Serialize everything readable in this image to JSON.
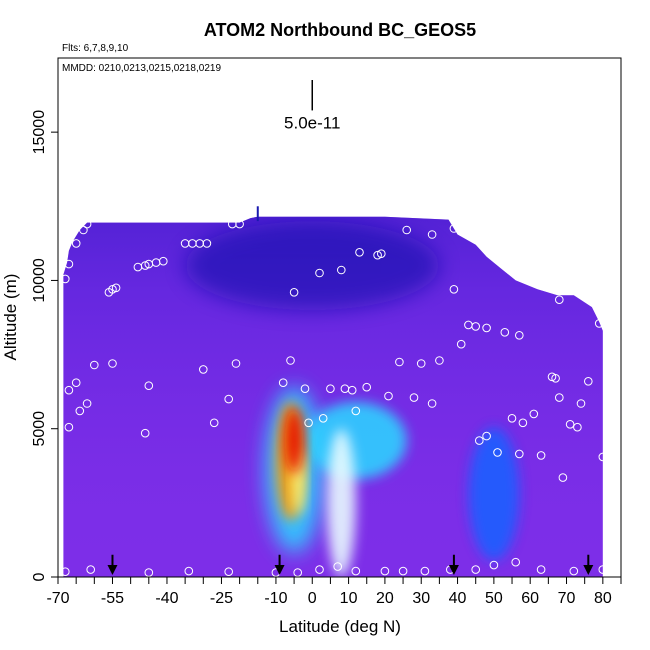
{
  "chart_data": {
    "type": "heatmap",
    "title": "ATOM2 Northbound BC_GEOS5",
    "subtitle_flights": "Flts: 6,7,8,9,10",
    "subtitle_dates": "MMDD: 0210,0213,0215,0218,0219",
    "xlabel": "Latitude (deg N)",
    "ylabel": "Altitude (m)",
    "xlim": [
      -70,
      85
    ],
    "ylim": [
      0,
      17500
    ],
    "xticks": [
      -70,
      -65,
      -60,
      -55,
      -50,
      -45,
      -40,
      -35,
      -30,
      -25,
      -20,
      -15,
      -10,
      -5,
      0,
      5,
      10,
      15,
      20,
      25,
      30,
      35,
      40,
      45,
      50,
      55,
      60,
      65,
      70,
      75,
      80,
      85
    ],
    "xtick_labels": [
      {
        "value": -70,
        "label": "-70"
      },
      {
        "value": -55,
        "label": "-55"
      },
      {
        "value": -40,
        "label": "-40"
      },
      {
        "value": -25,
        "label": "-25"
      },
      {
        "value": -10,
        "label": "-10"
      },
      {
        "value": 0,
        "label": "0"
      },
      {
        "value": 10,
        "label": "10"
      },
      {
        "value": 20,
        "label": "20"
      },
      {
        "value": 30,
        "label": "30"
      },
      {
        "value": 40,
        "label": "40"
      },
      {
        "value": 50,
        "label": "50"
      },
      {
        "value": 60,
        "label": "60"
      },
      {
        "value": 70,
        "label": "70"
      },
      {
        "value": 80,
        "label": "80"
      }
    ],
    "yticks": [
      {
        "value": 0,
        "label": "0"
      },
      {
        "value": 5000,
        "label": "5000"
      },
      {
        "value": 10000,
        "label": "10000"
      },
      {
        "value": 15000,
        "label": "15000"
      }
    ],
    "scale_bar": {
      "label": "5.0e-11",
      "lat": 0,
      "alt_bottom": 15800,
      "alt_top": 17500
    },
    "colors": {
      "background": "#7d2ee8",
      "low": "#5a1fd6",
      "navy": "#0a0aa8",
      "blue": "#1f5fff",
      "cyan": "#2fd0ff",
      "pale": "#e8fbff",
      "yellow": "#ffff80",
      "orange": "#ff9a00",
      "red": "#e81000",
      "marker": "#ffffff"
    },
    "domain_outline": [
      [
        -68.5,
        0
      ],
      [
        -68.5,
        10200
      ],
      [
        -67.5,
        10600
      ],
      [
        -67,
        11000
      ],
      [
        -66,
        11300
      ],
      [
        -64,
        11700
      ],
      [
        -62,
        11950
      ],
      [
        -20,
        11950
      ],
      [
        -17,
        12100
      ],
      [
        -15,
        12150
      ],
      [
        -10,
        12150
      ],
      [
        20,
        12150
      ],
      [
        37.5,
        12050
      ],
      [
        40,
        11550
      ],
      [
        45,
        11200
      ],
      [
        48,
        10800
      ],
      [
        52,
        10400
      ],
      [
        56,
        10000
      ],
      [
        62,
        9700
      ],
      [
        67.5,
        9500
      ],
      [
        72,
        9500
      ],
      [
        77,
        9100
      ],
      [
        79,
        8600
      ],
      [
        80,
        8300
      ],
      [
        80,
        0
      ]
    ],
    "field_features": [
      {
        "name": "plume-core",
        "lat": -5,
        "alt": 4600,
        "lat_width": 5,
        "alt_height": 2200,
        "level": "red"
      },
      {
        "name": "plume-body",
        "lat": -6,
        "alt": 3900,
        "lat_width": 8,
        "alt_height": 4000,
        "level": "orange"
      },
      {
        "name": "plume-halo",
        "lat": -5,
        "alt": 3600,
        "lat_width": 16,
        "alt_height": 5600,
        "level": "cyan"
      },
      {
        "name": "tropical-shelf",
        "lat": 12,
        "alt": 4600,
        "lat_width": 28,
        "alt_height": 2600,
        "level": "cyan"
      },
      {
        "name": "tropical-column",
        "lat": 8,
        "alt": 2500,
        "lat_width": 8,
        "alt_height": 5000,
        "level": "pale"
      },
      {
        "name": "nh-band",
        "lat": 50,
        "alt": 2800,
        "lat_width": 14,
        "alt_height": 4500,
        "level": "blue"
      },
      {
        "name": "upper-navy",
        "lat": 0,
        "alt": 10500,
        "lat_width": 70,
        "alt_height": 3000,
        "level": "navy"
      }
    ],
    "observations": [
      [
        -68,
        10050
      ],
      [
        -67,
        10550
      ],
      [
        -65,
        11250
      ],
      [
        -63,
        11700
      ],
      [
        -62,
        11900
      ],
      [
        -67,
        6300
      ],
      [
        -65,
        6550
      ],
      [
        -64,
        5600
      ],
      [
        -62,
        5850
      ],
      [
        -67,
        5050
      ],
      [
        -60,
        7150
      ],
      [
        -55,
        7200
      ],
      [
        -46,
        4850
      ],
      [
        -45,
        6450
      ],
      [
        -56,
        9600
      ],
      [
        -55,
        9700
      ],
      [
        -54,
        9750
      ],
      [
        -48,
        10450
      ],
      [
        -46,
        10500
      ],
      [
        -45,
        10550
      ],
      [
        -43,
        10600
      ],
      [
        -41,
        10650
      ],
      [
        -35,
        11250
      ],
      [
        -33,
        11250
      ],
      [
        -31,
        11250
      ],
      [
        -29,
        11250
      ],
      [
        -22,
        11900
      ],
      [
        -20,
        11900
      ],
      [
        -30,
        7000
      ],
      [
        -27,
        5200
      ],
      [
        -23,
        6000
      ],
      [
        -21,
        7200
      ],
      [
        -5,
        9600
      ],
      [
        -8,
        6550
      ],
      [
        -6,
        7300
      ],
      [
        -2,
        6350
      ],
      [
        2,
        10250
      ],
      [
        5,
        6350
      ],
      [
        8,
        10350
      ],
      [
        9,
        6350
      ],
      [
        11,
        6300
      ],
      [
        15,
        6400
      ],
      [
        12,
        5600
      ],
      [
        13,
        10950
      ],
      [
        18,
        10850
      ],
      [
        19,
        10900
      ],
      [
        -1,
        5200
      ],
      [
        3,
        5350
      ],
      [
        21,
        6100
      ],
      [
        24,
        7250
      ],
      [
        28,
        6050
      ],
      [
        30,
        7200
      ],
      [
        33,
        5850
      ],
      [
        35,
        7300
      ],
      [
        39,
        9700
      ],
      [
        41,
        7850
      ],
      [
        43,
        8500
      ],
      [
        45,
        8450
      ],
      [
        48,
        8400
      ],
      [
        53,
        8250
      ],
      [
        57,
        8150
      ],
      [
        26,
        11700
      ],
      [
        33,
        11550
      ],
      [
        39,
        11750
      ],
      [
        46,
        4600
      ],
      [
        48,
        4750
      ],
      [
        51,
        4200
      ],
      [
        55,
        5350
      ],
      [
        57,
        4150
      ],
      [
        58,
        5200
      ],
      [
        61,
        5500
      ],
      [
        63,
        4100
      ],
      [
        66,
        6750
      ],
      [
        67,
        6700
      ],
      [
        68,
        6050
      ],
      [
        69,
        3350
      ],
      [
        71,
        5150
      ],
      [
        73,
        5050
      ],
      [
        74,
        5850
      ],
      [
        76,
        6600
      ],
      [
        77,
        9350
      ],
      [
        79,
        8550
      ],
      [
        80,
        4050
      ],
      [
        68,
        9350
      ],
      [
        -68,
        180
      ],
      [
        -61,
        250
      ],
      [
        -45,
        150
      ],
      [
        -34,
        200
      ],
      [
        -23,
        180
      ],
      [
        -10,
        150
      ],
      [
        -4,
        150
      ],
      [
        2,
        250
      ],
      [
        7,
        350
      ],
      [
        12,
        200
      ],
      [
        20,
        200
      ],
      [
        25,
        200
      ],
      [
        31,
        200
      ],
      [
        38,
        250
      ],
      [
        45,
        250
      ],
      [
        50,
        400
      ],
      [
        56,
        500
      ],
      [
        63,
        250
      ],
      [
        72,
        200
      ],
      [
        80,
        250
      ]
    ],
    "flight_arrows": [
      -55,
      -9,
      39,
      76
    ],
    "arrow_alt_top": 750,
    "tall_marker": {
      "lat": -15,
      "alt_top": 12500,
      "alt_bottom": 12000
    }
  }
}
